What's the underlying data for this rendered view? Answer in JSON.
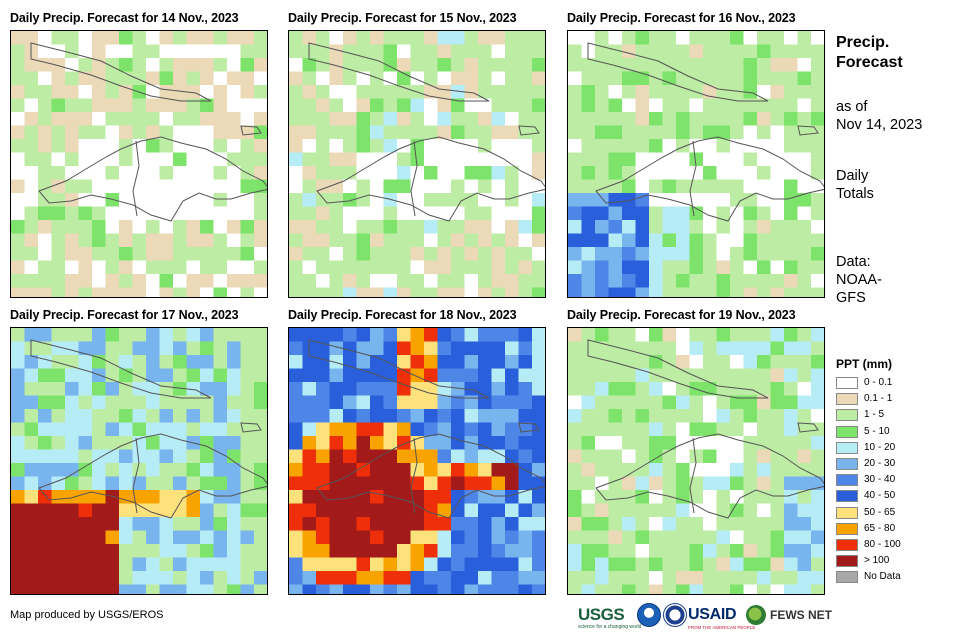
{
  "panels": [
    {
      "title": "Daily Precip. Forecast for 14 Nov., 2023",
      "pattern": "dry"
    },
    {
      "title": "Daily Precip. Forecast for 15 Nov., 2023",
      "pattern": "dry-green"
    },
    {
      "title": "Daily Precip. Forecast for 16 Nov., 2023",
      "pattern": "southwest-wet"
    },
    {
      "title": "Daily Precip. Forecast for 17 Nov., 2023",
      "pattern": "south-heavy"
    },
    {
      "title": "Daily Precip. Forecast for 18 Nov., 2023",
      "pattern": "very-heavy"
    },
    {
      "title": "Daily Precip. Forecast for 19 Nov., 2023",
      "pattern": "east-wet"
    }
  ],
  "info": {
    "title_line1": "Precip.",
    "title_line2": "Forecast",
    "asof_line1": "as of",
    "asof_line2": "Nov 14, 2023",
    "totals_line1": "Daily",
    "totals_line2": "Totals",
    "data_line1": "Data:",
    "data_line2": "NOAA-",
    "data_line3": "GFS"
  },
  "legend": {
    "title": "PPT (mm)",
    "items": [
      {
        "label": "0 - 0.1",
        "color": "#ffffff"
      },
      {
        "label": "0.1 - 1",
        "color": "#ecd9b8"
      },
      {
        "label": "1 - 5",
        "color": "#bdeca4"
      },
      {
        "label": "5 - 10",
        "color": "#7de36a"
      },
      {
        "label": "10 - 20",
        "color": "#b6ecf6"
      },
      {
        "label": "20 - 30",
        "color": "#78b4ee"
      },
      {
        "label": "30 - 40",
        "color": "#4d86e6"
      },
      {
        "label": "40 - 50",
        "color": "#2a5fdc"
      },
      {
        "label": "50 - 65",
        "color": "#fde17a"
      },
      {
        "label": "65 - 80",
        "color": "#f9a300"
      },
      {
        "label": "80 - 100",
        "color": "#ef2f0a"
      },
      {
        "label": "> 100",
        "color": "#a31a1a"
      },
      {
        "label": "No Data",
        "color": "#a8a8a8"
      }
    ]
  },
  "footer": {
    "credit": "Map produced by USGS/EROS",
    "logo_usgs": "USGS",
    "logo_usgs_tagline": "science for a changing world",
    "logo_usaid": "USAID",
    "logo_usaid_tagline": "FROM THE AMERICAN PEOPLE",
    "logo_fews": "FEWS NET"
  }
}
